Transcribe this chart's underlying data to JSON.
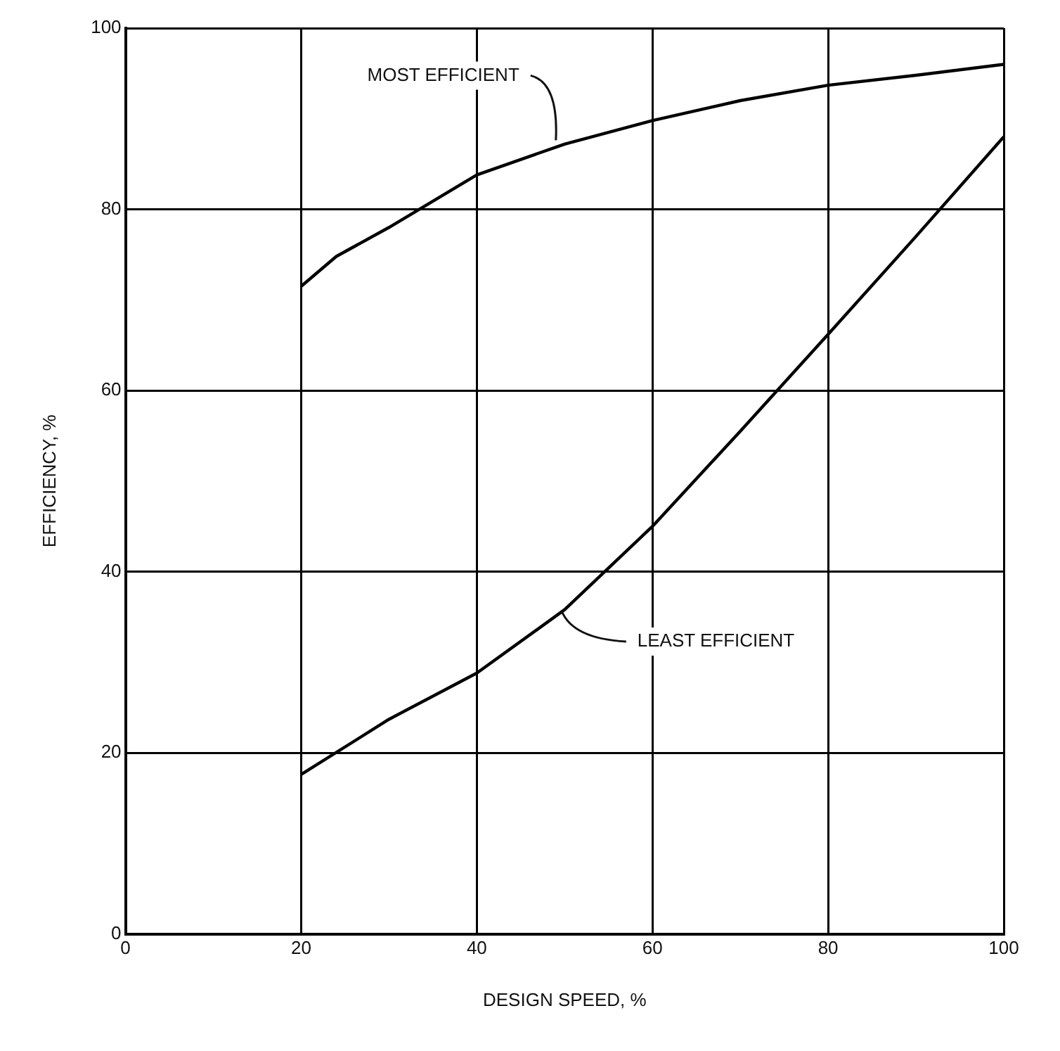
{
  "chart_data": {
    "type": "line",
    "xlabel": "DESIGN SPEED, %",
    "ylabel": "EFFICIENCY, %",
    "x": [
      20,
      24,
      30,
      40,
      50,
      60,
      70,
      80,
      90,
      100
    ],
    "series": [
      {
        "color": "#000000",
        "values": [
          71.5,
          74.8,
          78,
          83.8,
          87.2,
          89.8,
          92,
          93.7,
          94.8,
          96
        ]
      },
      {
        "color": "#000000",
        "x": [
          20,
          30,
          40,
          50,
          60,
          70,
          80,
          90,
          100
        ],
        "values": [
          17.6,
          23.7,
          28.8,
          35.8,
          45,
          55.5,
          66.2,
          77,
          88
        ]
      }
    ],
    "xlim": [
      0,
      100
    ],
    "ylim": [
      0,
      100
    ],
    "xticks": [
      0,
      20,
      40,
      60,
      80,
      100
    ],
    "yticks": [
      0,
      20,
      40,
      60,
      80,
      100
    ],
    "grid": true,
    "legend": false,
    "marker": "none",
    "line_style": "solid",
    "annotations": [
      {
        "text": "MOST EFFICIENT",
        "x": 49,
        "y": 87
      },
      {
        "text": "LEAST EFFICIENT",
        "x": 49,
        "y": 36
      }
    ]
  }
}
